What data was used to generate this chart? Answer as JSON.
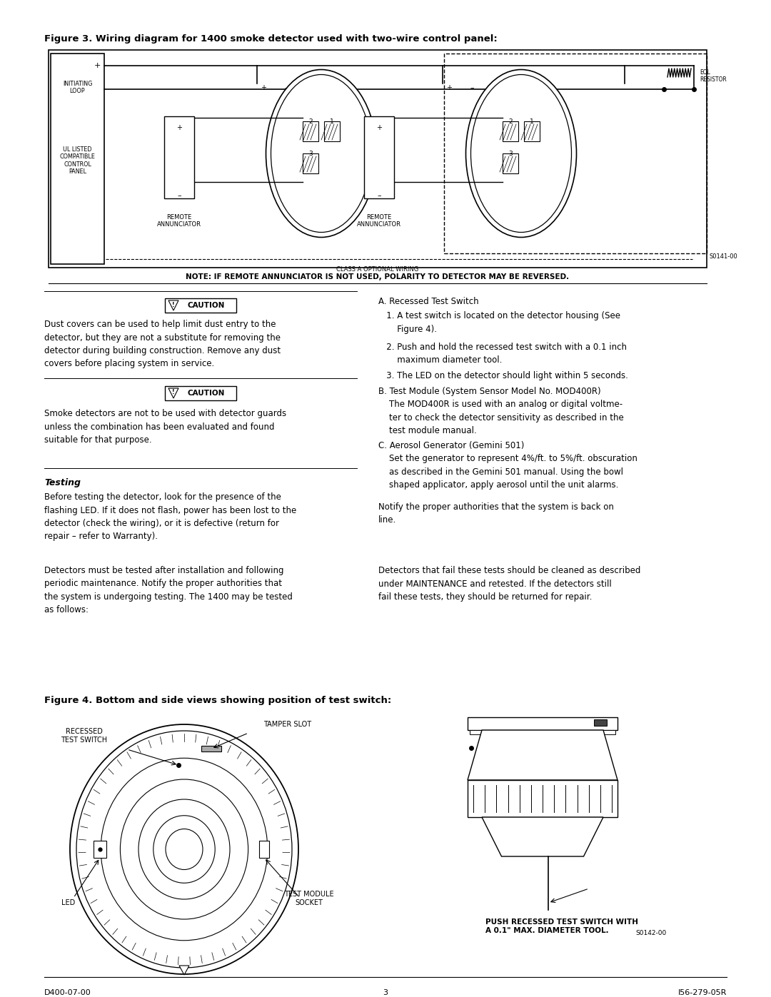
{
  "page_width": 10.8,
  "page_height": 13.97,
  "bg_color": "#ffffff",
  "text_color": "#000000",
  "figure3_title": "Figure 3. Wiring diagram for 1400 smoke detector used with two-wire control panel:",
  "figure4_title": "Figure 4. Bottom and side views showing position of test switch:",
  "note_text": "NOTE: IF REMOTE ANNUNCIATOR IS NOT USED, POLARITY TO DETECTOR MAY BE REVERSED.",
  "caution1_text": "Dust covers can be used to help limit dust entry to the\ndetector, but they are not a substitute for removing the\ndetector during building construction. Remove any dust\ncovers before placing system in service.",
  "caution2_text": "Smoke detectors are not to be used with detector guards\nunless the combination has been evaluated and found\nsuitable for that purpose.",
  "testing_heading": "Testing",
  "testing_text1": "Before testing the detector, look for the presence of the\nflashing LED. If it does not flash, power has been lost to the\ndetector (check the wiring), or it is defective (return for\nrepair – refer to Warranty).",
  "testing_text2": "Detectors must be tested after installation and following\nperiodic maintenance. Notify the proper authorities that\nthe system is undergoing testing. The 1400 may be tested\nas follows:",
  "right_col_A": "A. Recessed Test Switch",
  "right_col_A1": "   1. A test switch is located on the detector housing (See\n       Figure 4).",
  "right_col_A2": "   2. Push and hold the recessed test switch with a 0.1 inch\n       maximum diameter tool.",
  "right_col_A3": "   3. The LED on the detector should light within 5 seconds.",
  "right_col_B": "B. Test Module (System Sensor Model No. MOD400R)",
  "right_col_B1": "    The MOD400R is used with an analog or digital voltme-\n    ter to check the detector sensitivity as described in the\n    test module manual.",
  "right_col_C": "C. Aerosol Generator (Gemini 501)",
  "right_col_C1": "    Set the generator to represent 4%/ft. to 5%/ft. obscuration\n    as described in the Gemini 501 manual. Using the bowl\n    shaped applicator, apply aerosol until the unit alarms.",
  "notify_text": "Notify the proper authorities that the system is back on\nline.",
  "detectors_fail_text": "Detectors that fail these tests should be cleaned as described\nunder MAINTENANCE and retested. If the detectors still\nfail these tests, they should be returned for repair.",
  "footer_left": "D400-07-00",
  "footer_center": "3",
  "footer_right": "I56-279-05R",
  "s0141": "S0141-00",
  "s0142": "S0142-00",
  "class_a": "CLASS A OPTIONAL WIRING"
}
